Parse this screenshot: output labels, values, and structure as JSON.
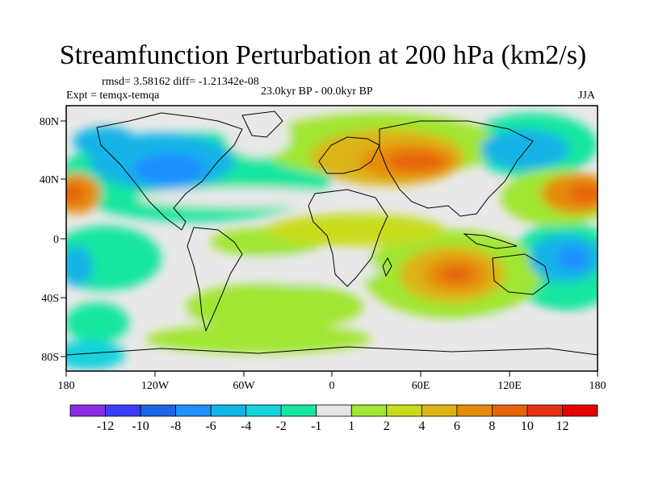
{
  "title": "Streamfunction Perturbation at 200 hPa (km2/s)",
  "stats": "rmsd= 3.58162 diff= -1.21342e-08",
  "experiment": "Expt = temqx-temqa",
  "period": "23.0kyr BP - 00.0kyr BP",
  "season": "JJA",
  "lat_labels": [
    "80N",
    "40N",
    "0",
    "40S",
    "80S"
  ],
  "lon_labels": [
    "180",
    "120W",
    "60W",
    "0",
    "60E",
    "120E",
    "180"
  ],
  "colorbar": {
    "labels": [
      "-12",
      "-10",
      "-8",
      "-6",
      "-4",
      "-2",
      "-1",
      "1",
      "2",
      "4",
      "6",
      "8",
      "10",
      "12"
    ],
    "colors": [
      "#8a2be2",
      "#3c3cff",
      "#1a64e6",
      "#1e90ff",
      "#12b4e6",
      "#14d2dc",
      "#19e6a0",
      "#e6e6e6",
      "#a0e632",
      "#c8dc1e",
      "#dcb414",
      "#e68c0a",
      "#e6640a",
      "#e63214",
      "#e60000"
    ]
  }
}
